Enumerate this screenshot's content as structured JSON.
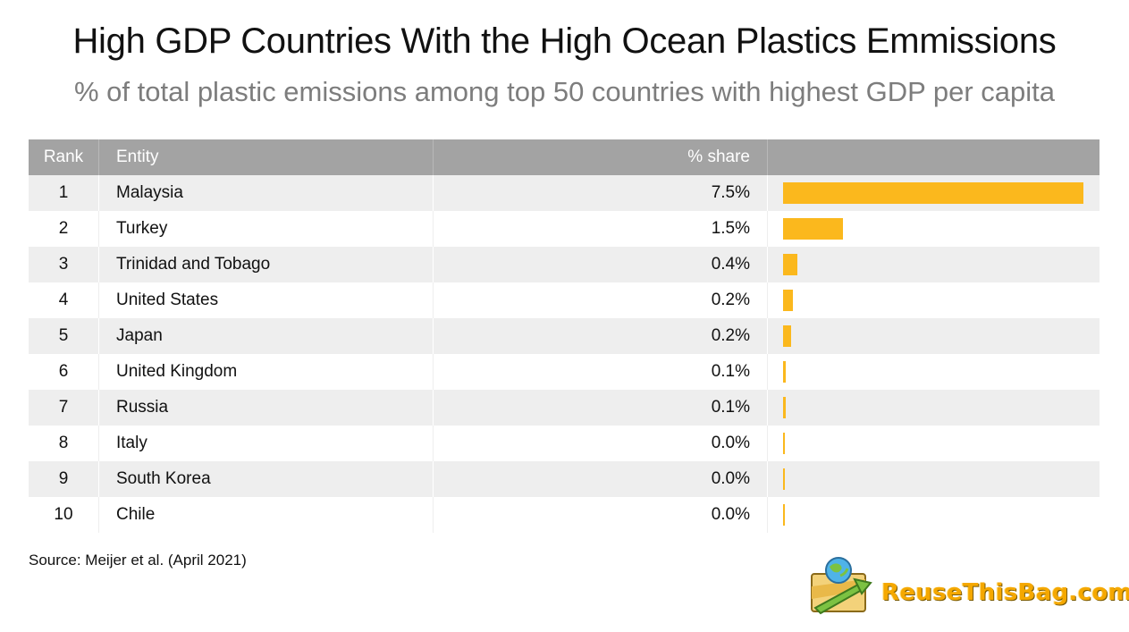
{
  "title": "High GDP Countries With the High Ocean Plastics Emmissions",
  "subtitle": "% of total plastic emissions among top 50 countries with highest GDP per capita",
  "table": {
    "headers": {
      "rank": "Rank",
      "entity": "Entity",
      "share": "% share"
    },
    "rows": [
      {
        "rank": "1",
        "entity": "Malaysia",
        "share": "7.5%"
      },
      {
        "rank": "2",
        "entity": "Turkey",
        "share": "1.5%"
      },
      {
        "rank": "3",
        "entity": "Trinidad and Tobago",
        "share": "0.4%"
      },
      {
        "rank": "4",
        "entity": "United States",
        "share": "0.2%"
      },
      {
        "rank": "5",
        "entity": "Japan",
        "share": "0.2%"
      },
      {
        "rank": "6",
        "entity": "United Kingdom",
        "share": "0.1%"
      },
      {
        "rank": "7",
        "entity": "Russia",
        "share": "0.1%"
      },
      {
        "rank": "8",
        "entity": "Italy",
        "share": "0.0%"
      },
      {
        "rank": "9",
        "entity": "South Korea",
        "share": "0.0%"
      },
      {
        "rank": "10",
        "entity": "Chile",
        "share": "0.0%"
      }
    ]
  },
  "chart_data": {
    "type": "bar",
    "orientation": "horizontal",
    "categories": [
      "Malaysia",
      "Turkey",
      "Trinidad and Tobago",
      "United States",
      "Japan",
      "United Kingdom",
      "Russia",
      "Italy",
      "South Korea",
      "Chile"
    ],
    "values": [
      7.5,
      1.5,
      0.36,
      0.25,
      0.2,
      0.07,
      0.06,
      0.04,
      0.04,
      0.03
    ],
    "xlim": [
      0,
      7.5
    ],
    "bar_color": "#fbb81d",
    "grid": false
  },
  "source": "Source: Meijer et al. (April 2021)",
  "logo": {
    "text": "ReuseThisBag.com",
    "icon": "globe-bag-icon"
  }
}
